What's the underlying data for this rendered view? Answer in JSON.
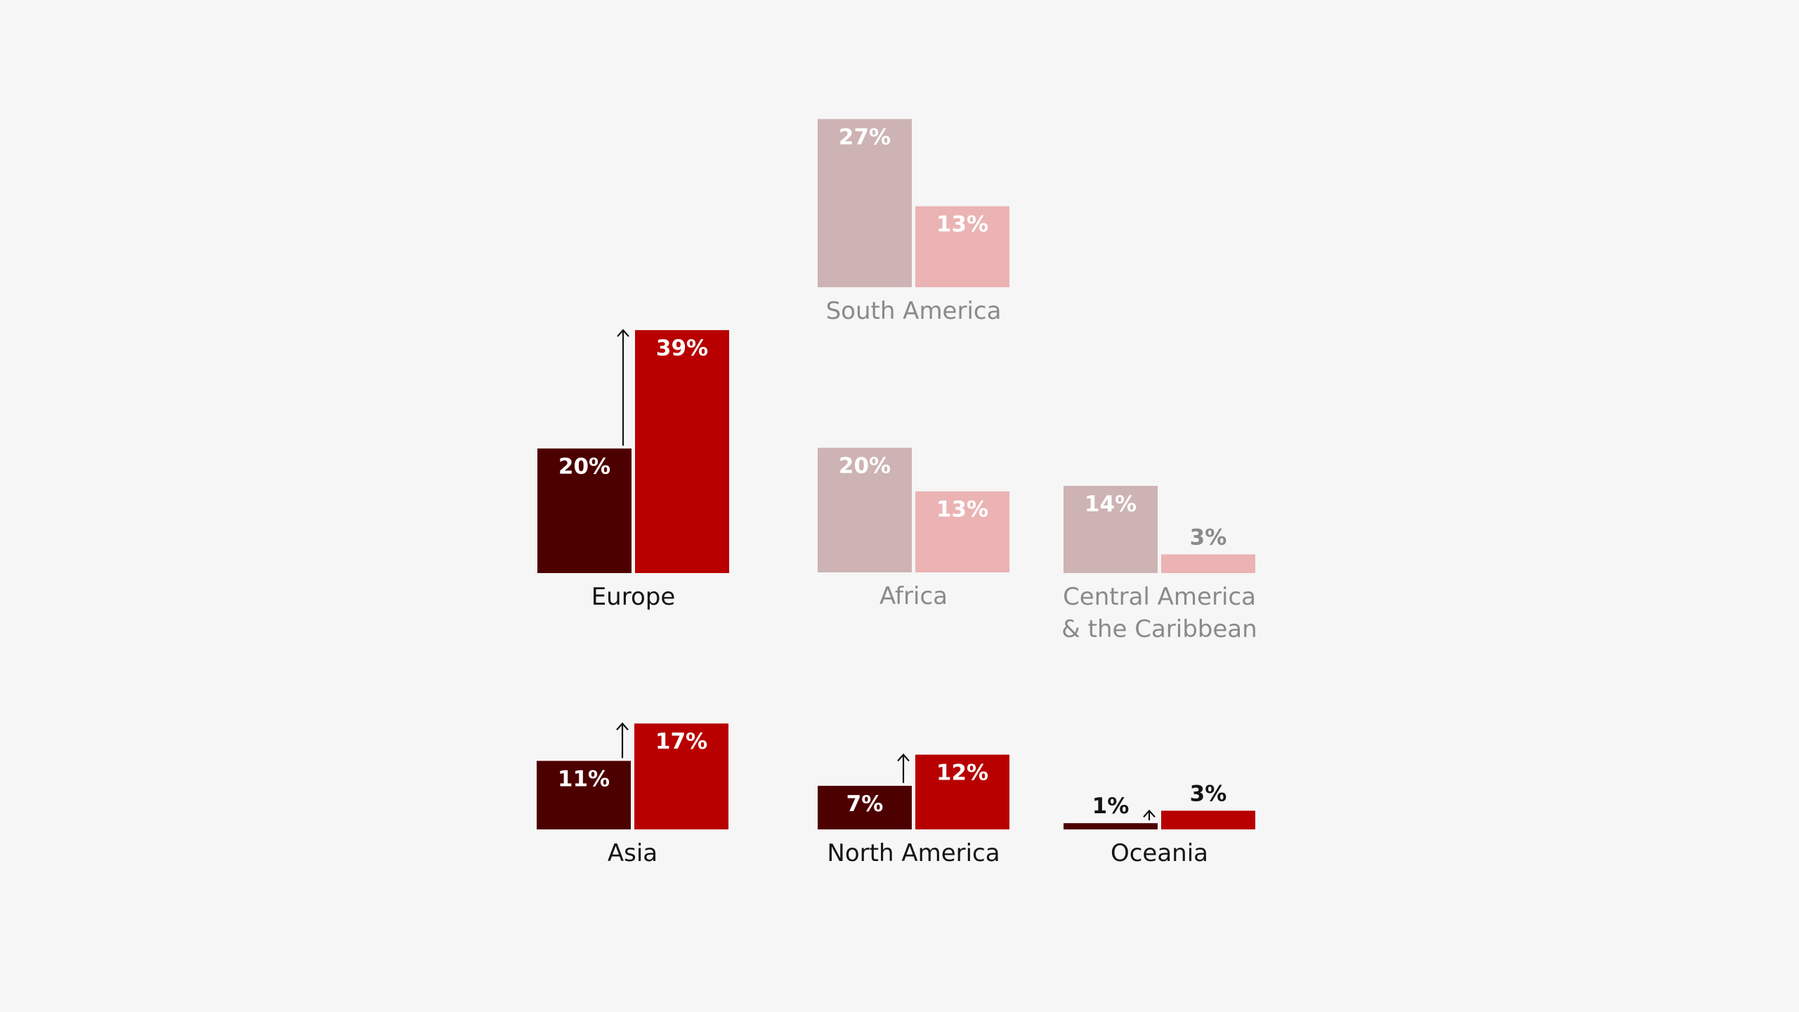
{
  "colors": {
    "background": "#f6f6f6",
    "highlight_before": "#4d0000",
    "highlight_after": "#b80000",
    "muted_before": "#cdb3b3",
    "muted_after": "#ebb3b3",
    "label_dark": "#141414",
    "label_muted": "#8a8a8a",
    "value_on_bar": "#ffffff",
    "value_above_dark": "#141414",
    "value_above_muted": "#8a8a8a",
    "arrow": "#141414"
  },
  "chart_data": {
    "type": "bar",
    "value_format": "{v}%",
    "groups": [
      {
        "region": "Europe",
        "label_lines": [
          "Europe"
        ],
        "before": 20,
        "after": 39,
        "highlight": true,
        "arrow": true
      },
      {
        "region": "Asia",
        "label_lines": [
          "Asia"
        ],
        "before": 11,
        "after": 17,
        "highlight": true,
        "arrow": true
      },
      {
        "region": "North America",
        "label_lines": [
          "North America"
        ],
        "before": 7,
        "after": 12,
        "highlight": true,
        "arrow": true
      },
      {
        "region": "Oceania",
        "label_lines": [
          "Oceania"
        ],
        "before": 1,
        "after": 3,
        "highlight": true,
        "arrow": true
      },
      {
        "region": "South America",
        "label_lines": [
          "South America"
        ],
        "before": 27,
        "after": 13,
        "highlight": false,
        "arrow": false
      },
      {
        "region": "Africa",
        "label_lines": [
          "Africa"
        ],
        "before": 20,
        "after": 13,
        "highlight": false,
        "arrow": false
      },
      {
        "region": "Central America & the Caribbean",
        "label_lines": [
          "Central America",
          "& the Caribbean"
        ],
        "before": 14,
        "after": 3,
        "highlight": false,
        "arrow": false
      }
    ]
  }
}
